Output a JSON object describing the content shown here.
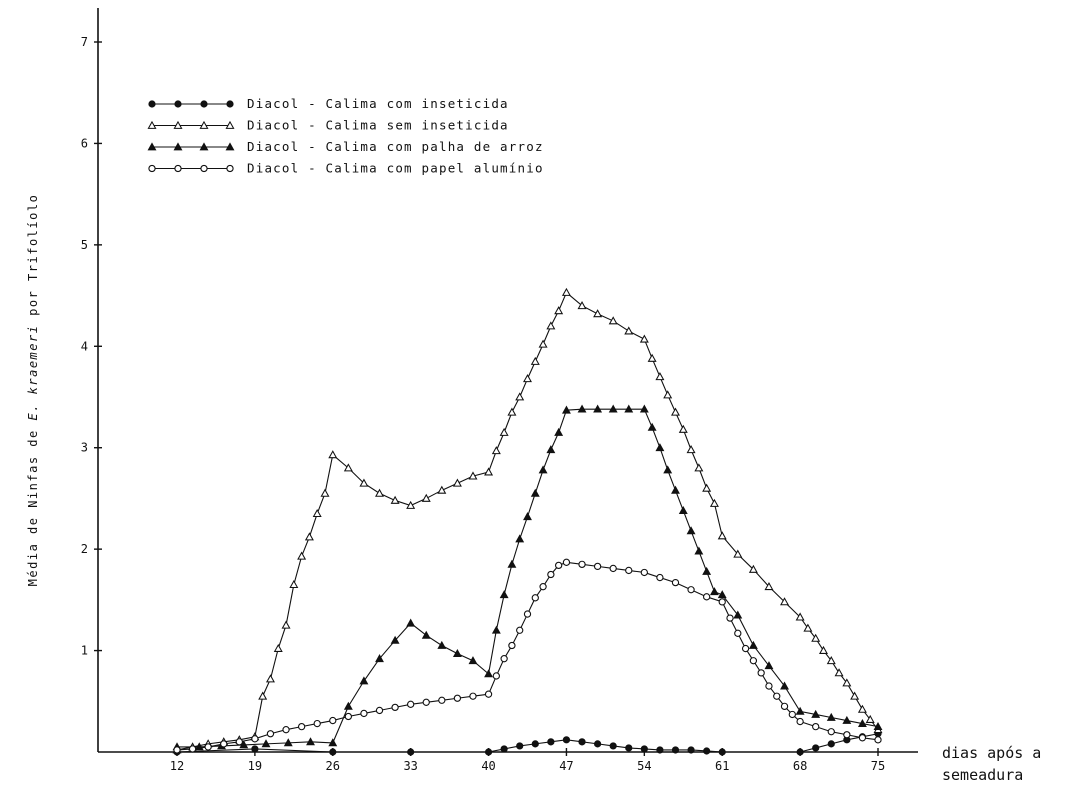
{
  "chart_data": {
    "type": "line",
    "title": "",
    "xlabel_lines": [
      "dias após a",
      "semeadura"
    ],
    "ylabel_prefix": "Média de Ninfas de ",
    "ylabel_italic": "E. kraemeri",
    "ylabel_suffix": " por Trifolíolo",
    "x_ticks": [
      12,
      19,
      26,
      33,
      40,
      47,
      54,
      61,
      68,
      75
    ],
    "y_ticks": [
      1,
      2,
      3,
      4,
      5,
      6,
      7
    ],
    "xlim": [
      7,
      77
    ],
    "ylim": [
      0,
      7
    ],
    "grid": false,
    "legend_position": "top-left",
    "series": [
      {
        "name": "Diacol - Calima com inseticida",
        "marker": "filled-circle",
        "x": [
          12,
          19,
          26,
          33,
          40,
          41.4,
          42.8,
          44.2,
          45.6,
          47,
          48.4,
          49.8,
          51.2,
          52.6,
          54,
          55.4,
          56.8,
          58.2,
          59.6,
          61,
          68,
          69.4,
          70.8,
          72.2,
          73.6,
          75
        ],
        "y": [
          0,
          0.03,
          0,
          0,
          0,
          0.03,
          0.06,
          0.08,
          0.1,
          0.12,
          0.1,
          0.08,
          0.06,
          0.04,
          0.03,
          0.02,
          0.02,
          0.02,
          0.01,
          0,
          0,
          0.04,
          0.08,
          0.12,
          0.15,
          0.18
        ]
      },
      {
        "name": "Diacol - Calima sem inseticida",
        "marker": "open-triangle",
        "x": [
          12,
          13.4,
          14.8,
          16.2,
          17.6,
          19,
          19.7,
          20.4,
          21.1,
          21.8,
          22.5,
          23.2,
          23.9,
          24.6,
          25.3,
          26,
          27.4,
          28.8,
          30.2,
          31.6,
          33,
          34.4,
          35.8,
          37.2,
          38.6,
          40,
          40.7,
          41.4,
          42.1,
          42.8,
          43.5,
          44.2,
          44.9,
          45.6,
          46.3,
          47,
          48.4,
          49.8,
          51.2,
          52.6,
          54,
          54.7,
          55.4,
          56.1,
          56.8,
          57.5,
          58.2,
          58.9,
          59.6,
          60.3,
          61,
          62.4,
          63.8,
          65.2,
          66.6,
          68,
          68.7,
          69.4,
          70.1,
          70.8,
          71.5,
          72.2,
          72.9,
          73.6,
          74.3,
          75
        ],
        "y": [
          0.02,
          0.05,
          0.08,
          0.1,
          0.12,
          0.15,
          0.55,
          0.72,
          1.02,
          1.25,
          1.65,
          1.93,
          2.12,
          2.35,
          2.55,
          2.93,
          2.8,
          2.65,
          2.55,
          2.48,
          2.43,
          2.5,
          2.58,
          2.65,
          2.72,
          2.76,
          2.97,
          3.15,
          3.35,
          3.5,
          3.68,
          3.85,
          4.02,
          4.2,
          4.35,
          4.53,
          4.4,
          4.32,
          4.25,
          4.15,
          4.07,
          3.88,
          3.7,
          3.52,
          3.35,
          3.18,
          2.98,
          2.8,
          2.6,
          2.45,
          2.13,
          1.95,
          1.8,
          1.63,
          1.48,
          1.33,
          1.22,
          1.12,
          1.0,
          0.9,
          0.78,
          0.68,
          0.55,
          0.42,
          0.32,
          0.22
        ]
      },
      {
        "name": "Diacol - Calima com palha de arroz",
        "marker": "filled-triangle",
        "x": [
          12,
          14,
          16,
          18,
          20,
          22,
          24,
          26,
          27.4,
          28.8,
          30.2,
          31.6,
          33,
          34.4,
          35.8,
          37.2,
          38.6,
          40,
          40.7,
          41.4,
          42.1,
          42.8,
          43.5,
          44.2,
          44.9,
          45.6,
          46.3,
          47,
          48.4,
          49.8,
          51.2,
          52.6,
          54,
          54.7,
          55.4,
          56.1,
          56.8,
          57.5,
          58.2,
          58.9,
          59.6,
          60.3,
          61,
          62.4,
          63.8,
          65.2,
          66.6,
          68,
          69.4,
          70.8,
          72.2,
          73.6,
          75
        ],
        "y": [
          0.05,
          0.05,
          0.06,
          0.07,
          0.08,
          0.09,
          0.1,
          0.09,
          0.45,
          0.7,
          0.92,
          1.1,
          1.27,
          1.15,
          1.05,
          0.97,
          0.9,
          0.77,
          1.2,
          1.55,
          1.85,
          2.1,
          2.32,
          2.55,
          2.78,
          2.98,
          3.15,
          3.37,
          3.38,
          3.38,
          3.38,
          3.38,
          3.38,
          3.2,
          3.0,
          2.78,
          2.58,
          2.38,
          2.18,
          1.98,
          1.78,
          1.58,
          1.55,
          1.35,
          1.05,
          0.85,
          0.65,
          0.4,
          0.37,
          0.34,
          0.31,
          0.28,
          0.25
        ]
      },
      {
        "name": "Diacol - Calima com papel alumínio",
        "marker": "open-circle",
        "x": [
          12,
          13.4,
          14.8,
          16.2,
          17.6,
          19,
          20.4,
          21.8,
          23.2,
          24.6,
          26,
          27.4,
          28.8,
          30.2,
          31.6,
          33,
          34.4,
          35.8,
          37.2,
          38.6,
          40,
          40.7,
          41.4,
          42.1,
          42.8,
          43.5,
          44.2,
          44.9,
          45.6,
          46.3,
          47,
          48.4,
          49.8,
          51.2,
          52.6,
          54,
          55.4,
          56.8,
          58.2,
          59.6,
          61,
          61.7,
          62.4,
          63.1,
          63.8,
          64.5,
          65.2,
          65.9,
          66.6,
          67.3,
          68,
          69.4,
          70.8,
          72.2,
          73.6,
          75
        ],
        "y": [
          0.02,
          0.03,
          0.05,
          0.08,
          0.1,
          0.13,
          0.18,
          0.22,
          0.25,
          0.28,
          0.31,
          0.35,
          0.38,
          0.41,
          0.44,
          0.47,
          0.49,
          0.51,
          0.53,
          0.55,
          0.57,
          0.75,
          0.92,
          1.05,
          1.2,
          1.36,
          1.52,
          1.63,
          1.75,
          1.84,
          1.87,
          1.85,
          1.83,
          1.81,
          1.79,
          1.77,
          1.72,
          1.67,
          1.6,
          1.53,
          1.48,
          1.32,
          1.17,
          1.02,
          0.9,
          0.78,
          0.65,
          0.55,
          0.45,
          0.37,
          0.3,
          0.25,
          0.2,
          0.17,
          0.14,
          0.12
        ]
      }
    ]
  }
}
